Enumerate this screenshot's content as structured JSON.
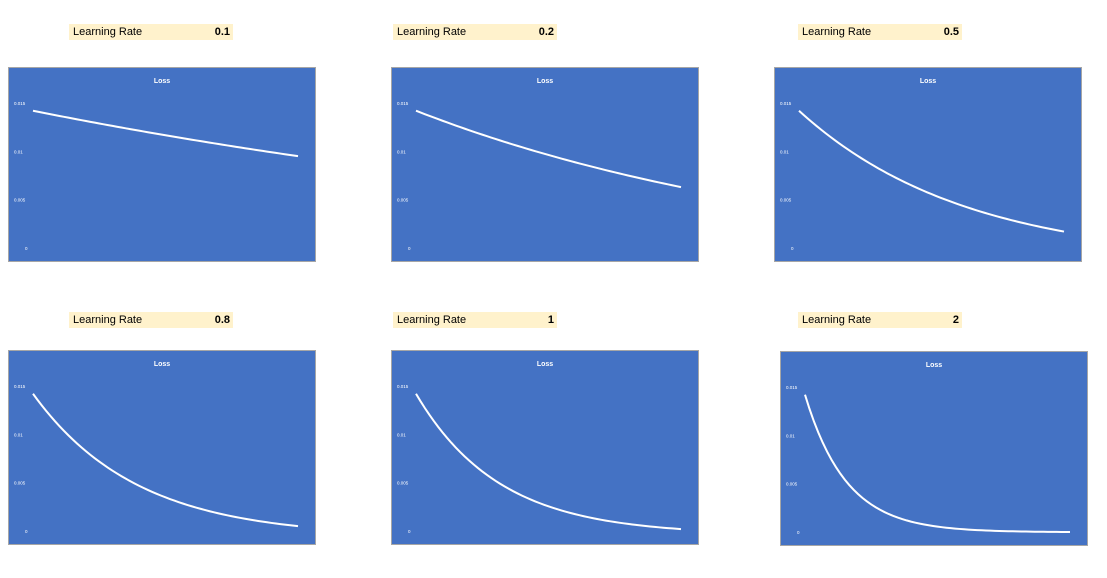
{
  "panels": [
    {
      "lr_label": "Learning Rate",
      "lr_value": "0.1"
    },
    {
      "lr_label": "Learning Rate",
      "lr_value": "0.2"
    },
    {
      "lr_label": "Learning Rate",
      "lr_value": "0.5"
    },
    {
      "lr_label": "Learning Rate",
      "lr_value": "0.8"
    },
    {
      "lr_label": "Learning Rate",
      "lr_value": "1"
    },
    {
      "lr_label": "Learning Rate",
      "lr_value": "2"
    }
  ],
  "colors": {
    "chart_bg": "#4472c4",
    "line": "#ffffff",
    "label_bg": "#fff2cc"
  },
  "chart_data": [
    {
      "type": "line",
      "title": "Loss",
      "y_ticks": [
        "0",
        "0.005",
        "0.01",
        "0.015"
      ],
      "ylim": [
        0,
        0.015
      ],
      "grid": false,
      "series": [
        {
          "y_start": 0.0142,
          "y_end": 0.0095,
          "decay_rate": 0.1
        }
      ]
    },
    {
      "type": "line",
      "title": "Loss",
      "y_ticks": [
        "0",
        "0.005",
        "0.01",
        "0.015"
      ],
      "ylim": [
        0,
        0.015
      ],
      "grid": false,
      "series": [
        {
          "y_start": 0.0142,
          "y_end": 0.0063,
          "decay_rate": 0.2
        }
      ]
    },
    {
      "type": "line",
      "title": "Loss",
      "y_ticks": [
        "0",
        "0.005",
        "0.01",
        "0.015"
      ],
      "ylim": [
        0,
        0.015
      ],
      "grid": false,
      "series": [
        {
          "y_start": 0.0142,
          "y_end": 0.0017,
          "decay_rate": 0.5
        }
      ]
    },
    {
      "type": "line",
      "title": "Loss",
      "y_ticks": [
        "0",
        "0.005",
        "0.01",
        "0.015"
      ],
      "ylim": [
        0,
        0.015
      ],
      "grid": false,
      "series": [
        {
          "y_start": 0.0142,
          "y_end": 0.0005,
          "decay_rate": 0.8
        }
      ]
    },
    {
      "type": "line",
      "title": "Loss",
      "y_ticks": [
        "0",
        "0.005",
        "0.01",
        "0.015"
      ],
      "ylim": [
        0,
        0.015
      ],
      "grid": false,
      "series": [
        {
          "y_start": 0.0142,
          "y_end": 0.0002,
          "decay_rate": 1
        }
      ]
    },
    {
      "type": "line",
      "title": "Loss",
      "y_ticks": [
        "0",
        "0.005",
        "0.01",
        "0.015"
      ],
      "ylim": [
        0,
        0.015
      ],
      "grid": false,
      "series": [
        {
          "y_start": 0.0142,
          "y_end": 0.0,
          "decay_rate": 2
        }
      ]
    }
  ]
}
